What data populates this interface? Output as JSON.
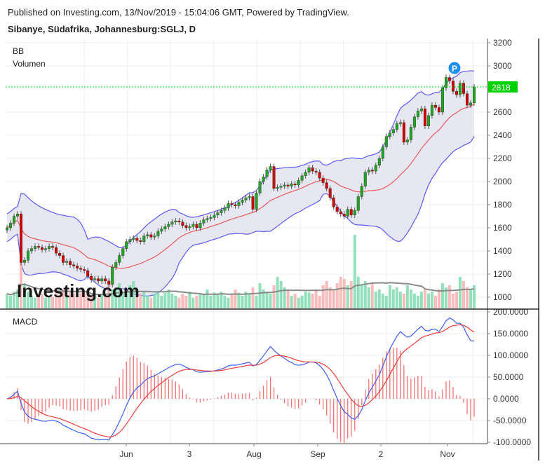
{
  "header": {
    "published": "Published on Investing.com, 13/Nov/2019 - 15:04:06 GMT, Powered by TradingView.",
    "instrument": "Sibanye, Südafrika, Johannesburg:SGLJ, D"
  },
  "legend": {
    "bb": "BB",
    "volume": "Volumen",
    "macd": "MACD"
  },
  "branding": {
    "logo": "Investing.com"
  },
  "marker": {
    "label": "P"
  },
  "colors": {
    "up": "#1fa51f",
    "down": "#d40000",
    "bb_band": "#5a5af5",
    "bb_fill": "#e3e3f0",
    "bb_mid": "#e85a5a",
    "vol_up": "#7fdcb0",
    "vol_down": "#f7b0b0",
    "vol_ma": "#8a8a8a",
    "macd": "#3d5cf5",
    "signal": "#f03c3c",
    "hist": "#f05050",
    "last_price": "#00d000"
  },
  "chart_data": [
    {
      "type": "candlestick",
      "title": "",
      "y_ticks": [
        "3200",
        "3000",
        "2600",
        "2400",
        "2200",
        "2000",
        "1800",
        "1600",
        "1400",
        "1200",
        "1000"
      ],
      "ylim": [
        1000,
        3200
      ],
      "x_ticks": [
        "Jun",
        "3",
        "Aug",
        "Sep",
        "2",
        "Nov"
      ],
      "last_price": "2818",
      "grid": true,
      "closes": [
        1600,
        1640,
        1700,
        1720,
        1300,
        1320,
        1400,
        1420,
        1440,
        1430,
        1410,
        1420,
        1440,
        1430,
        1380,
        1360,
        1300,
        1310,
        1280,
        1270,
        1250,
        1240,
        1230,
        1180,
        1150,
        1160,
        1140,
        1160,
        1140,
        1110,
        1260,
        1300,
        1360,
        1420,
        1480,
        1500,
        1510,
        1490,
        1480,
        1530,
        1540,
        1520,
        1530,
        1570,
        1590,
        1610,
        1630,
        1650,
        1660,
        1650,
        1620,
        1600,
        1610,
        1630,
        1600,
        1640,
        1670,
        1680,
        1690,
        1710,
        1730,
        1750,
        1770,
        1810,
        1800,
        1790,
        1820,
        1840,
        1860,
        1870,
        1760,
        1900,
        2000,
        2040,
        2100,
        2130,
        1940,
        1950,
        1960,
        1970,
        1960,
        1980,
        1970,
        2010,
        2050,
        2080,
        2120,
        2090,
        2080,
        2030,
        1990,
        1940,
        1860,
        1780,
        1740,
        1720,
        1700,
        1760,
        1710,
        1750,
        1870,
        1960,
        2080,
        2100,
        2090,
        2140,
        2200,
        2300,
        2390,
        2420,
        2450,
        2500,
        2510,
        2340,
        2360,
        2470,
        2560,
        2610,
        2630,
        2480,
        2570,
        2660,
        2640,
        2600,
        2810,
        2900,
        2870,
        2780,
        2750,
        2850,
        2760,
        2660,
        2680,
        2818
      ],
      "volumes": [
        14,
        12,
        16,
        18,
        53,
        24,
        16,
        12,
        10,
        12,
        14,
        10,
        12,
        11,
        15,
        13,
        18,
        12,
        16,
        14,
        12,
        15,
        17,
        14,
        13,
        12,
        10,
        14,
        12,
        22,
        18,
        20,
        24,
        16,
        14,
        22,
        26,
        12,
        14,
        16,
        12,
        10,
        14,
        16,
        12,
        15,
        18,
        14,
        12,
        10,
        14,
        12,
        16,
        10,
        12,
        14,
        13,
        18,
        12,
        15,
        14,
        16,
        12,
        10,
        14,
        18,
        15,
        12,
        16,
        14,
        20,
        12,
        24,
        18,
        16,
        14,
        22,
        30,
        26,
        20,
        18,
        12,
        14,
        10,
        12,
        16,
        15,
        14,
        18,
        12,
        22,
        26,
        20,
        18,
        24,
        30,
        28,
        22,
        26,
        70,
        30,
        22,
        26,
        20,
        24,
        16,
        18,
        14,
        12,
        22,
        18,
        20,
        16,
        14,
        22,
        18,
        14,
        12,
        16,
        18,
        14,
        16,
        12,
        18,
        24,
        20,
        22,
        14,
        16,
        30,
        26,
        20,
        18,
        22
      ],
      "indicators": [
        "BB",
        "Volumen"
      ]
    },
    {
      "type": "line",
      "title": "MACD",
      "y_ticks": [
        "200.0000",
        "150.0000",
        "100.0000",
        "50.0000",
        "0.0000",
        "-50.0000",
        "-100.0000"
      ],
      "ylim": [
        -100,
        200
      ]
    }
  ]
}
